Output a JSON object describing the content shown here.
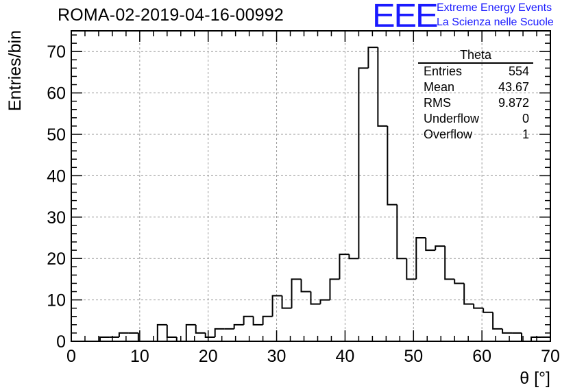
{
  "header": {
    "title": "ROMA-02-2019-04-16-00992",
    "logo_text": "EEE",
    "org_line1": "Extreme Energy Events",
    "org_line2": "La Scienza nelle Scuole"
  },
  "stats_box": {
    "title": "Theta",
    "rows": [
      {
        "label": "Entries",
        "value": "554"
      },
      {
        "label": "Mean",
        "value": "43.67"
      },
      {
        "label": "RMS",
        "value": "9.872"
      },
      {
        "label": "Underflow",
        "value": "0"
      },
      {
        "label": "Overflow",
        "value": "1"
      }
    ]
  },
  "chart_data": {
    "type": "bar",
    "style": "step-histogram",
    "title": "ROMA-02-2019-04-16-00992",
    "xlabel": "θ [°]",
    "ylabel": "Entries/bin",
    "xlim": [
      0,
      70
    ],
    "ylim": [
      0,
      75
    ],
    "grid": true,
    "bin_width": 1.4,
    "bin_edges_start": 0,
    "values": [
      0,
      0,
      0,
      1,
      1,
      2,
      2,
      0,
      0,
      4,
      1,
      0,
      4,
      2,
      1,
      3,
      3,
      4,
      6,
      4,
      6,
      11,
      8,
      15,
      12,
      9,
      10,
      15,
      21,
      20,
      66,
      71,
      52,
      33,
      20,
      15,
      25,
      22,
      23,
      15,
      14,
      9,
      8,
      7,
      3,
      2,
      2,
      0,
      1,
      1
    ],
    "xticks": [
      0,
      10,
      20,
      30,
      40,
      50,
      60,
      70
    ],
    "yticks": [
      0,
      10,
      20,
      30,
      40,
      50,
      60,
      70
    ],
    "xtick_labels": [
      "0",
      "10",
      "20",
      "30",
      "40",
      "50",
      "60",
      "70"
    ],
    "ytick_labels": [
      "0",
      "10",
      "20",
      "30",
      "40",
      "50",
      "60",
      "70"
    ],
    "line_color": "#000000",
    "grid_color": "#9a9a9a"
  }
}
